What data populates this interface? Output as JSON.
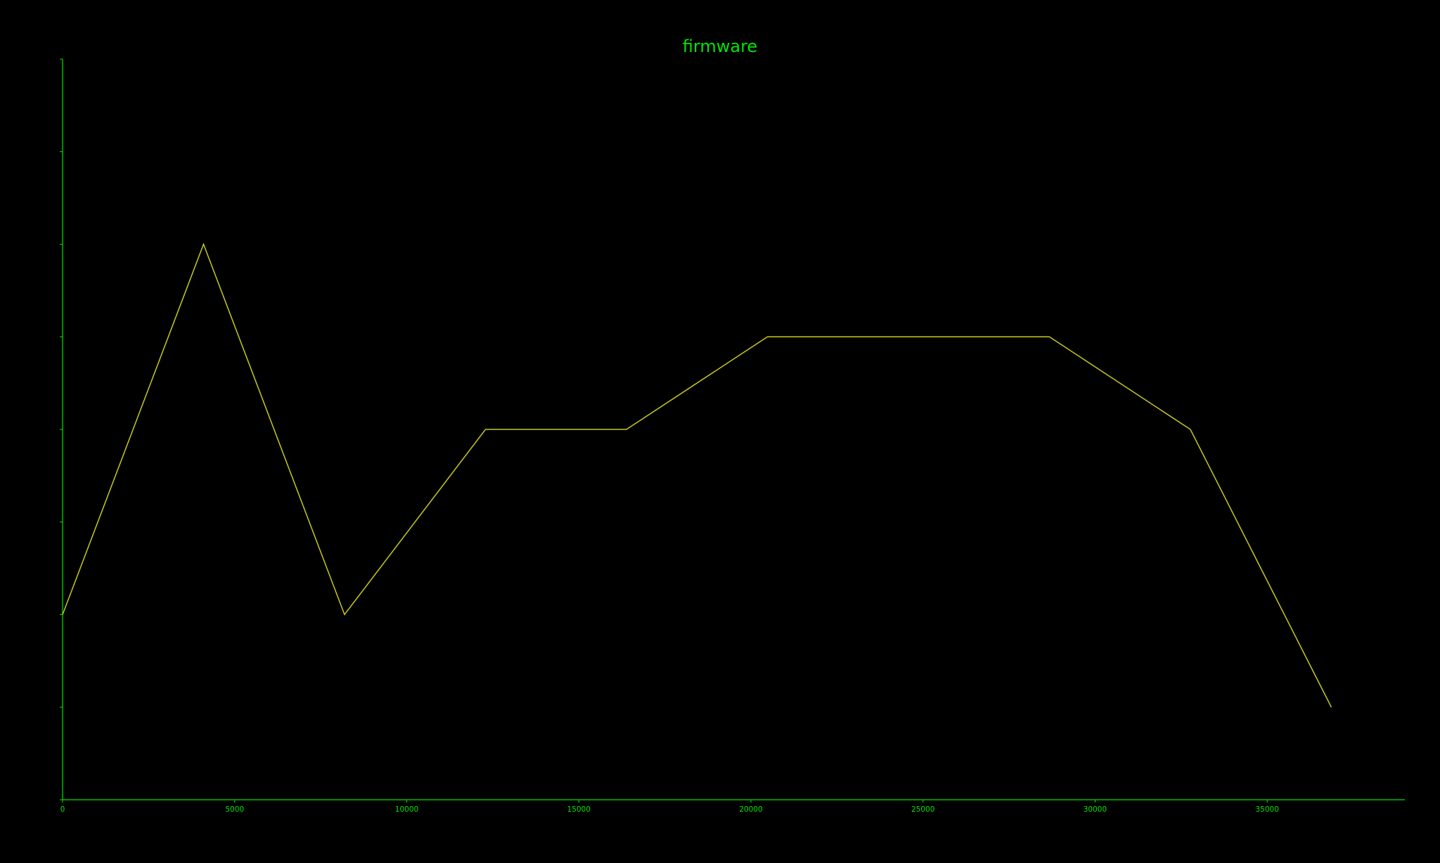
{
  "colors": {
    "background": "#000000",
    "axis": "#00e600",
    "title": "#00e600",
    "tick_label": "#00e600",
    "series_line": "#c8c81e"
  },
  "chart_data": {
    "type": "line",
    "title": "firmware",
    "xlabel": "",
    "ylabel": "",
    "xlim": [
      0,
      39000
    ],
    "ylim": [
      0,
      8
    ],
    "x_ticks": [
      0,
      5000,
      10000,
      15000,
      20000,
      25000,
      30000,
      35000
    ],
    "x_tick_labels": [
      "0",
      "5000",
      "10000",
      "15000",
      "20000",
      "25000",
      "30000",
      "35000"
    ],
    "y_ticks": [
      0,
      1,
      2,
      3,
      4,
      5,
      6,
      7,
      8
    ],
    "y_tick_labels_visible": false,
    "grid": false,
    "legend": "none",
    "series": [
      {
        "x": [
          0,
          4096,
          8192,
          12288,
          16384,
          20480,
          24576,
          28672,
          32768,
          36864
        ],
        "y": [
          2,
          6,
          2,
          4,
          4,
          5,
          5,
          5,
          4,
          1
        ]
      }
    ]
  }
}
